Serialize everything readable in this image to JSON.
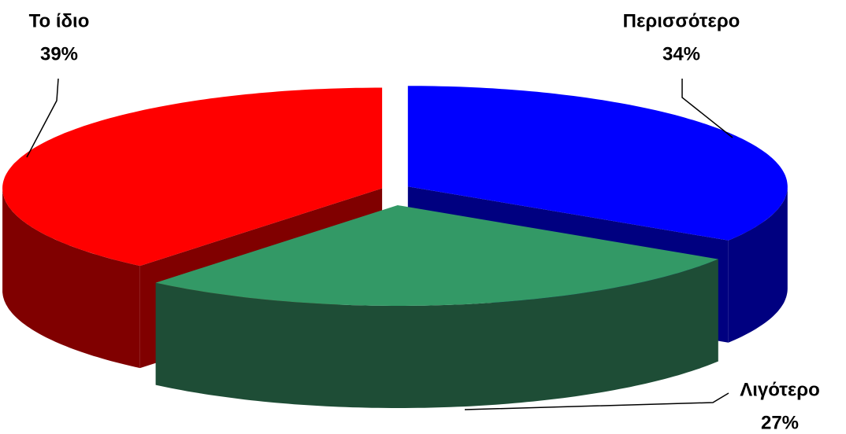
{
  "chart_data": {
    "type": "pie3d",
    "categories": [
      "Περισσότερο",
      "Λιγότερο",
      "Το ίδιο"
    ],
    "values": [
      34,
      27,
      39
    ],
    "value_labels": [
      "34%",
      "27%",
      "39%"
    ],
    "colors": [
      "#0000ff",
      "#339966",
      "#ff0000"
    ],
    "side_colors": [
      "#000080",
      "#1e4d36",
      "#800000"
    ]
  }
}
